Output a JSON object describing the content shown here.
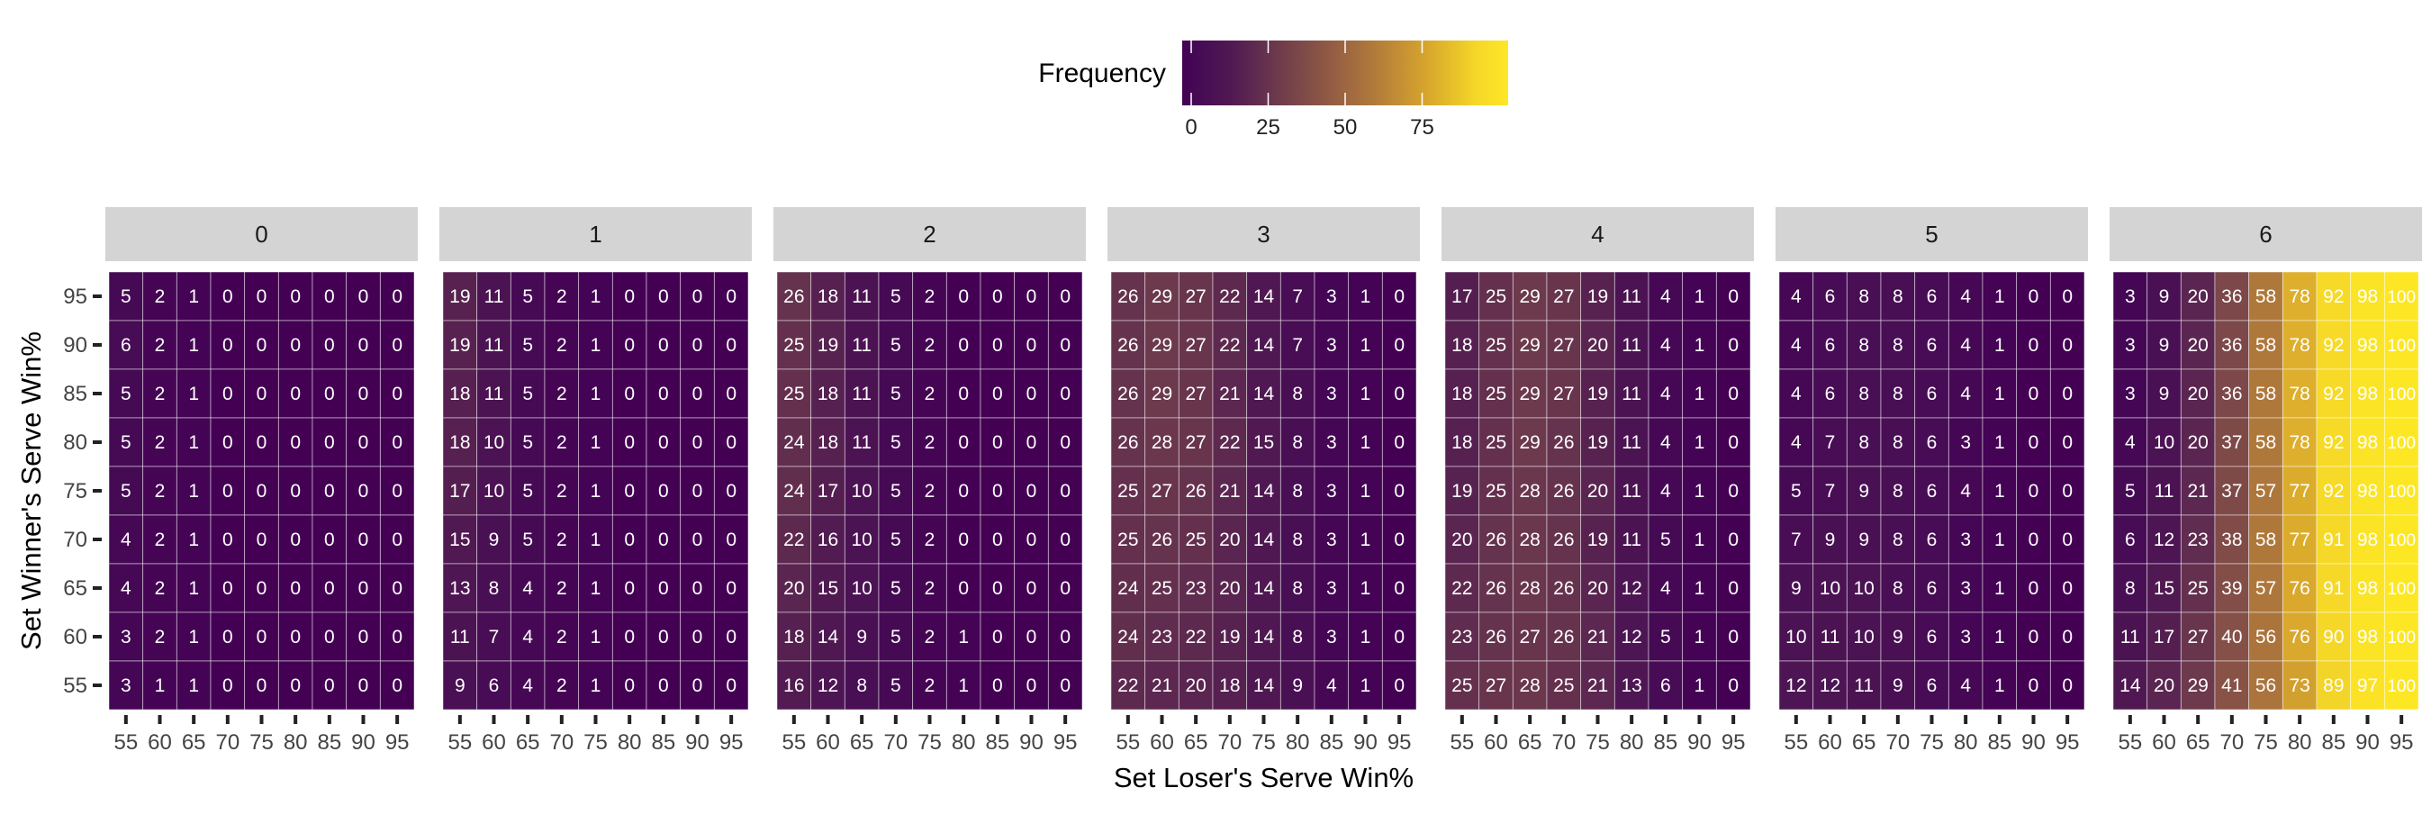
{
  "chart_data": {
    "type": "heatmap",
    "legend": {
      "title": "Frequency",
      "placement": "top",
      "range": [
        0,
        100
      ],
      "ticks": [
        0,
        25,
        50,
        75
      ],
      "colors": [
        "#440154",
        "#4d0b52",
        "#6e3b4c",
        "#8f5a44",
        "#b47e3a",
        "#dba52e",
        "#fde725"
      ]
    },
    "xlabel": "Set Loser's Serve Win%",
    "ylabel": "Set Winner's Serve Win%",
    "x": [
      55,
      60,
      65,
      70,
      75,
      80,
      85,
      90,
      95
    ],
    "y": [
      95,
      90,
      85,
      80,
      75,
      70,
      65,
      60,
      55
    ],
    "panels": [
      {
        "label": "0",
        "values": [
          [
            5,
            2,
            1,
            0,
            0,
            0,
            0,
            0,
            0
          ],
          [
            6,
            2,
            1,
            0,
            0,
            0,
            0,
            0,
            0
          ],
          [
            5,
            2,
            1,
            0,
            0,
            0,
            0,
            0,
            0
          ],
          [
            5,
            2,
            1,
            0,
            0,
            0,
            0,
            0,
            0
          ],
          [
            5,
            2,
            1,
            0,
            0,
            0,
            0,
            0,
            0
          ],
          [
            4,
            2,
            1,
            0,
            0,
            0,
            0,
            0,
            0
          ],
          [
            4,
            2,
            1,
            0,
            0,
            0,
            0,
            0,
            0
          ],
          [
            3,
            2,
            1,
            0,
            0,
            0,
            0,
            0,
            0
          ],
          [
            3,
            1,
            1,
            0,
            0,
            0,
            0,
            0,
            0
          ]
        ]
      },
      {
        "label": "1",
        "values": [
          [
            19,
            11,
            5,
            2,
            1,
            0,
            0,
            0,
            0
          ],
          [
            19,
            11,
            5,
            2,
            1,
            0,
            0,
            0,
            0
          ],
          [
            18,
            11,
            5,
            2,
            1,
            0,
            0,
            0,
            0
          ],
          [
            18,
            10,
            5,
            2,
            1,
            0,
            0,
            0,
            0
          ],
          [
            17,
            10,
            5,
            2,
            1,
            0,
            0,
            0,
            0
          ],
          [
            15,
            9,
            5,
            2,
            1,
            0,
            0,
            0,
            0
          ],
          [
            13,
            8,
            4,
            2,
            1,
            0,
            0,
            0,
            0
          ],
          [
            11,
            7,
            4,
            2,
            1,
            0,
            0,
            0,
            0
          ],
          [
            9,
            6,
            4,
            2,
            1,
            0,
            0,
            0,
            0
          ]
        ]
      },
      {
        "label": "2",
        "values": [
          [
            26,
            18,
            11,
            5,
            2,
            0,
            0,
            0,
            0
          ],
          [
            25,
            19,
            11,
            5,
            2,
            0,
            0,
            0,
            0
          ],
          [
            25,
            18,
            11,
            5,
            2,
            0,
            0,
            0,
            0
          ],
          [
            24,
            18,
            11,
            5,
            2,
            0,
            0,
            0,
            0
          ],
          [
            24,
            17,
            10,
            5,
            2,
            0,
            0,
            0,
            0
          ],
          [
            22,
            16,
            10,
            5,
            2,
            0,
            0,
            0,
            0
          ],
          [
            20,
            15,
            10,
            5,
            2,
            0,
            0,
            0,
            0
          ],
          [
            18,
            14,
            9,
            5,
            2,
            1,
            0,
            0,
            0
          ],
          [
            16,
            12,
            8,
            5,
            2,
            1,
            0,
            0,
            0
          ]
        ]
      },
      {
        "label": "3",
        "values": [
          [
            26,
            29,
            27,
            22,
            14,
            7,
            3,
            1,
            0
          ],
          [
            26,
            29,
            27,
            22,
            14,
            7,
            3,
            1,
            0
          ],
          [
            26,
            29,
            27,
            21,
            14,
            8,
            3,
            1,
            0
          ],
          [
            26,
            28,
            27,
            22,
            15,
            8,
            3,
            1,
            0
          ],
          [
            25,
            27,
            26,
            21,
            14,
            8,
            3,
            1,
            0
          ],
          [
            25,
            26,
            25,
            20,
            14,
            8,
            3,
            1,
            0
          ],
          [
            24,
            25,
            23,
            20,
            14,
            8,
            3,
            1,
            0
          ],
          [
            24,
            23,
            22,
            19,
            14,
            8,
            3,
            1,
            0
          ],
          [
            22,
            21,
            20,
            18,
            14,
            9,
            4,
            1,
            0
          ]
        ]
      },
      {
        "label": "4",
        "values": [
          [
            17,
            25,
            29,
            27,
            19,
            11,
            4,
            1,
            0
          ],
          [
            18,
            25,
            29,
            27,
            20,
            11,
            4,
            1,
            0
          ],
          [
            18,
            25,
            29,
            27,
            19,
            11,
            4,
            1,
            0
          ],
          [
            18,
            25,
            29,
            26,
            19,
            11,
            4,
            1,
            0
          ],
          [
            19,
            25,
            28,
            26,
            20,
            11,
            4,
            1,
            0
          ],
          [
            20,
            26,
            28,
            26,
            19,
            11,
            5,
            1,
            0
          ],
          [
            22,
            26,
            28,
            26,
            20,
            12,
            4,
            1,
            0
          ],
          [
            23,
            26,
            27,
            26,
            21,
            12,
            5,
            1,
            0
          ],
          [
            25,
            27,
            28,
            25,
            21,
            13,
            6,
            1,
            0
          ]
        ]
      },
      {
        "label": "5",
        "values": [
          [
            4,
            6,
            8,
            8,
            6,
            4,
            1,
            0,
            0
          ],
          [
            4,
            6,
            8,
            8,
            6,
            4,
            1,
            0,
            0
          ],
          [
            4,
            6,
            8,
            8,
            6,
            4,
            1,
            0,
            0
          ],
          [
            4,
            7,
            8,
            8,
            6,
            3,
            1,
            0,
            0
          ],
          [
            5,
            7,
            9,
            8,
            6,
            4,
            1,
            0,
            0
          ],
          [
            7,
            9,
            9,
            8,
            6,
            3,
            1,
            0,
            0
          ],
          [
            9,
            10,
            10,
            8,
            6,
            3,
            1,
            0,
            0
          ],
          [
            10,
            11,
            10,
            9,
            6,
            3,
            1,
            0,
            0
          ],
          [
            12,
            12,
            11,
            9,
            6,
            4,
            1,
            0,
            0
          ]
        ]
      },
      {
        "label": "6",
        "values": [
          [
            3,
            9,
            20,
            36,
            58,
            78,
            92,
            98,
            100
          ],
          [
            3,
            9,
            20,
            36,
            58,
            78,
            92,
            98,
            100
          ],
          [
            3,
            9,
            20,
            36,
            58,
            78,
            92,
            98,
            100
          ],
          [
            4,
            10,
            20,
            37,
            58,
            78,
            92,
            98,
            100
          ],
          [
            5,
            11,
            21,
            37,
            57,
            77,
            92,
            98,
            100
          ],
          [
            6,
            12,
            23,
            38,
            58,
            77,
            91,
            98,
            100
          ],
          [
            8,
            15,
            25,
            39,
            57,
            76,
            91,
            98,
            100
          ],
          [
            11,
            17,
            27,
            40,
            56,
            76,
            90,
            98,
            100
          ],
          [
            14,
            20,
            29,
            41,
            56,
            73,
            89,
            97,
            100
          ]
        ]
      }
    ]
  }
}
